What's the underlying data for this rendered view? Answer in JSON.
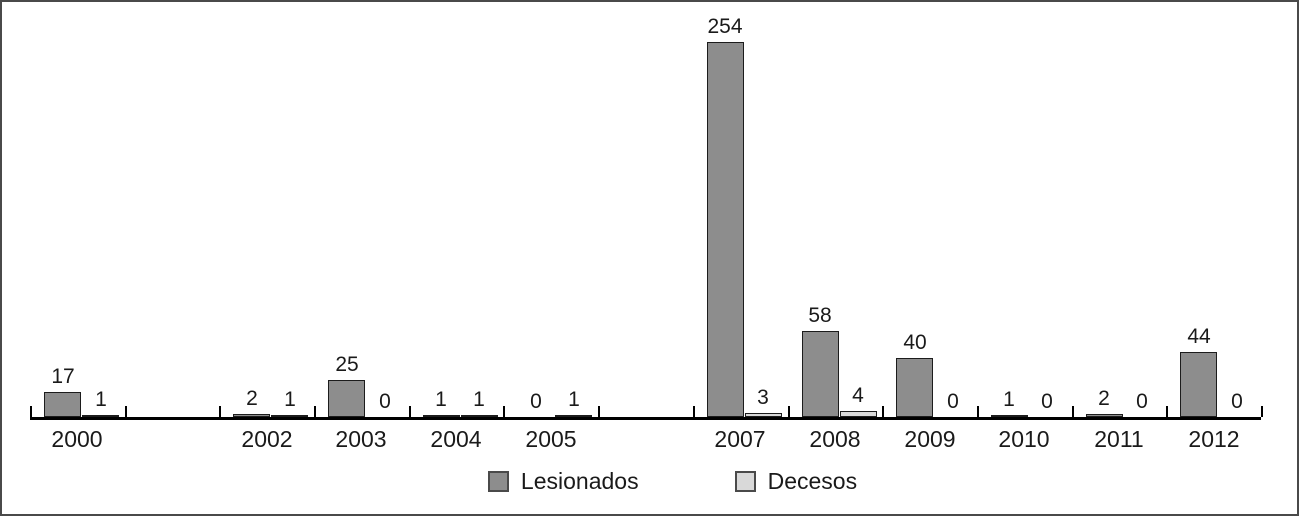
{
  "chart_data": {
    "type": "bar",
    "title": "",
    "xlabel": "",
    "ylabel": "",
    "categories": [
      "2000",
      "",
      "2002",
      "2003",
      "2004",
      "2005",
      "",
      "2007",
      "2008",
      "2009",
      "2010",
      "2011",
      "2012"
    ],
    "series": [
      {
        "name": "Lesionados",
        "color": "#8d8d8d",
        "border_color": "#1c1c1c",
        "values": [
          17,
          null,
          2,
          25,
          1,
          0,
          null,
          254,
          58,
          40,
          1,
          2,
          44
        ]
      },
      {
        "name": "Decesos",
        "color": "#d9d9d9",
        "border_color": "#1c1c1c",
        "values": [
          1,
          null,
          1,
          0,
          1,
          1,
          null,
          3,
          4,
          0,
          0,
          0,
          0
        ]
      }
    ],
    "ylim": [
      0,
      260
    ],
    "grid": false,
    "legend_position": "bottom-center",
    "bar_value_labels": true,
    "axis_color": "#000000",
    "text_color": "#1a1a1a"
  }
}
